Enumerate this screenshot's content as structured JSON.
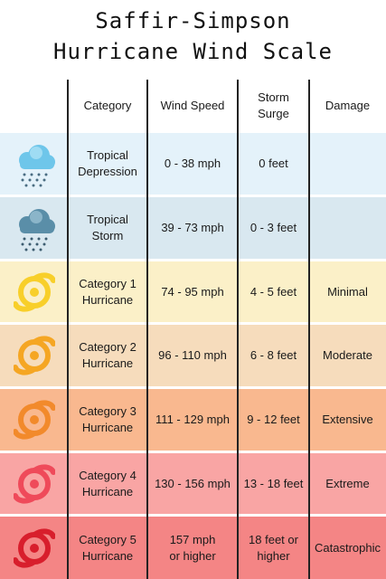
{
  "title": {
    "line1": "Saffir-Simpson",
    "line2": "Hurricane Wind Scale"
  },
  "headers": [
    "Category",
    "Wind Speed",
    "Storm Surge",
    "Damage"
  ],
  "colors": {
    "tropical_depression_bg": "#e4f2fa",
    "tropical_storm_bg": "#d9e8f0",
    "cat1_bg": "#fbf0c8",
    "cat2_bg": "#f6dcbc",
    "cat3_bg": "#f9b88f",
    "cat4_bg": "#f9a5a4",
    "cat5_bg": "#f48585",
    "cloud_light": "#6ec6ea",
    "cloud_dark": "#5a8ea8",
    "cat1_icon": "#f8cf2a",
    "cat2_icon": "#f5a623",
    "cat3_icon": "#f28a2b",
    "cat4_icon": "#ef4a5a",
    "cat5_icon": "#d81e2c"
  },
  "rows": [
    {
      "icon": "rain-cloud-light-icon",
      "category": "Tropical Depression",
      "wind": "0 - 38 mph",
      "surge": "0 feet",
      "damage": ""
    },
    {
      "icon": "rain-cloud-dark-icon",
      "category": "Tropical Storm",
      "wind": "39 - 73 mph",
      "surge": "0 - 3 feet",
      "damage": ""
    },
    {
      "icon": "hurricane-yellow-icon",
      "category": "Category 1 Hurricane",
      "wind": "74 - 95 mph",
      "surge": "4 - 5 feet",
      "damage": "Minimal"
    },
    {
      "icon": "hurricane-light-orange-icon",
      "category": "Category 2 Hurricane",
      "wind": "96 - 110 mph",
      "surge": "6 - 8 feet",
      "damage": "Moderate"
    },
    {
      "icon": "hurricane-orange-icon",
      "category": "Category 3 Hurricane",
      "wind": "111 - 129 mph",
      "surge": "9 - 12 feet",
      "damage": "Extensive"
    },
    {
      "icon": "hurricane-pink-icon",
      "category": "Category 4 Hurricane",
      "wind": "130 - 156 mph",
      "surge": "13 - 18 feet",
      "damage": "Extreme"
    },
    {
      "icon": "hurricane-red-icon",
      "category": "Category 5 Hurricane",
      "wind": "157 mph or higher",
      "surge": "18 feet or higher",
      "damage": "Catastrophic"
    }
  ]
}
